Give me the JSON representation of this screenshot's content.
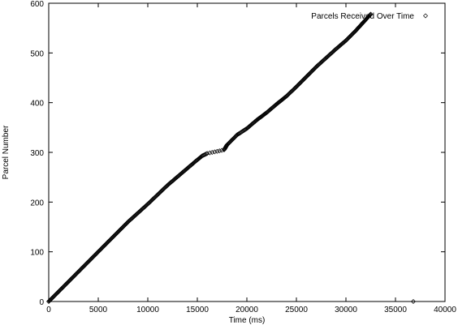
{
  "chart_data": {
    "type": "scatter",
    "title": "",
    "xlabel": "Time (ms)",
    "ylabel": "Parcel Number",
    "xlim": [
      0,
      40000
    ],
    "ylim": [
      0,
      600
    ],
    "x_ticks": [
      0,
      5000,
      10000,
      15000,
      20000,
      25000,
      30000,
      35000,
      40000
    ],
    "y_ticks": [
      0,
      100,
      200,
      300,
      400,
      500,
      600
    ],
    "x_tick_labels": [
      "0",
      "5000",
      "10000",
      "15000",
      "20000",
      "25000",
      "30000",
      "35000",
      "40000"
    ],
    "y_tick_labels": [
      "0",
      "100",
      "200",
      "300",
      "400",
      "500",
      "600"
    ],
    "grid": false,
    "legend_position": "top-right",
    "marker": "diamond",
    "colors": {
      "marker": "#000000",
      "axes": "#000000",
      "background": "#ffffff"
    },
    "series": [
      {
        "name": "Parcels Received Over Time",
        "curve": [
          [
            0,
            0
          ],
          [
            1000,
            20
          ],
          [
            2000,
            40
          ],
          [
            3000,
            60
          ],
          [
            4000,
            80
          ],
          [
            5000,
            100
          ],
          [
            6000,
            120
          ],
          [
            7000,
            140
          ],
          [
            8000,
            160
          ],
          [
            9000,
            178
          ],
          [
            10000,
            196
          ],
          [
            11000,
            215
          ],
          [
            12000,
            234
          ],
          [
            13000,
            251
          ],
          [
            14000,
            268
          ],
          [
            15000,
            285
          ],
          [
            15500,
            293
          ],
          [
            16000,
            298
          ],
          [
            17000,
            302
          ],
          [
            17700,
            305
          ],
          [
            18000,
            315
          ],
          [
            19000,
            335
          ],
          [
            20000,
            348
          ],
          [
            21000,
            365
          ],
          [
            22000,
            380
          ],
          [
            23000,
            397
          ],
          [
            24000,
            413
          ],
          [
            25000,
            432
          ],
          [
            26000,
            452
          ],
          [
            27000,
            472
          ],
          [
            28000,
            490
          ],
          [
            29000,
            508
          ],
          [
            30000,
            525
          ],
          [
            31000,
            545
          ],
          [
            32000,
            567
          ],
          [
            32500,
            578
          ]
        ],
        "outliers": [
          [
            36800,
            0
          ]
        ]
      }
    ]
  }
}
